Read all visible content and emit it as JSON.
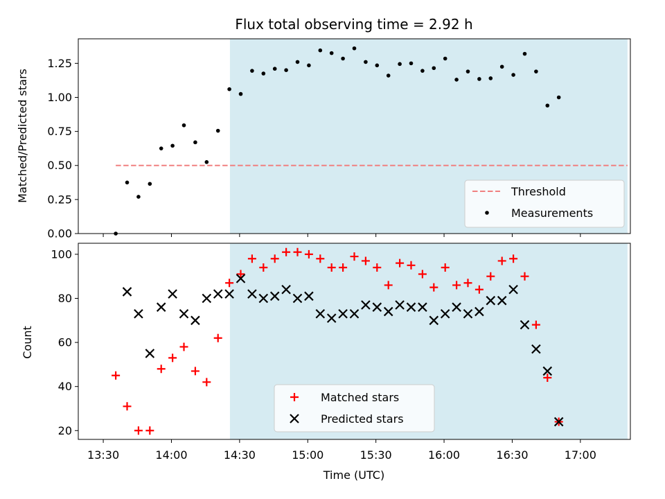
{
  "chart_data": [
    {
      "type": "scatter",
      "title": "Flux total observing time = 2.92 h",
      "ylabel": "Matched/Predicted stars",
      "ylim": [
        0,
        1.43
      ],
      "yticks": [
        0.0,
        0.25,
        0.5,
        0.75,
        1.0,
        1.25
      ],
      "ytick_labels": [
        "0.00",
        "0.25",
        "0.50",
        "0.75",
        "1.00",
        "1.25"
      ],
      "shaded_span_minutes": [
        55.75,
        230.75
      ],
      "threshold": {
        "name": "Threshold",
        "value": 0.5,
        "x_range_minutes": [
          5.5,
          230.75
        ],
        "color": "#f08080"
      },
      "legend_position": "lower right",
      "series": [
        {
          "name": "Measurements",
          "color": "#000000",
          "points": [
            [
              5.5,
              0.0
            ],
            [
              10.5,
              0.375
            ],
            [
              15.5,
              0.27
            ],
            [
              20.5,
              0.365
            ],
            [
              25.5,
              0.625
            ],
            [
              30.5,
              0.645
            ],
            [
              35.5,
              0.795
            ],
            [
              40.5,
              0.67
            ],
            [
              45.5,
              0.525
            ],
            [
              50.5,
              0.755
            ],
            [
              55.5,
              1.06
            ],
            [
              60.5,
              1.025
            ],
            [
              65.5,
              1.195
            ],
            [
              70.5,
              1.175
            ],
            [
              75.5,
              1.21
            ],
            [
              80.5,
              1.2
            ],
            [
              85.5,
              1.26
            ],
            [
              90.5,
              1.235
            ],
            [
              95.5,
              1.345
            ],
            [
              100.5,
              1.325
            ],
            [
              105.5,
              1.285
            ],
            [
              110.5,
              1.36
            ],
            [
              115.5,
              1.26
            ],
            [
              120.5,
              1.235
            ],
            [
              125.5,
              1.16
            ],
            [
              130.5,
              1.245
            ],
            [
              135.5,
              1.25
            ],
            [
              140.5,
              1.195
            ],
            [
              145.5,
              1.215
            ],
            [
              150.5,
              1.285
            ],
            [
              155.5,
              1.13
            ],
            [
              160.5,
              1.19
            ],
            [
              165.5,
              1.135
            ],
            [
              170.5,
              1.14
            ],
            [
              175.5,
              1.225
            ],
            [
              180.5,
              1.165
            ],
            [
              185.5,
              1.32
            ],
            [
              190.5,
              1.19
            ],
            [
              195.5,
              0.94
            ],
            [
              200.5,
              1.0
            ]
          ]
        }
      ]
    },
    {
      "type": "scatter",
      "xlabel": "Time (UTC)",
      "ylabel": "Count",
      "ylim": [
        16,
        105
      ],
      "yticks": [
        20,
        40,
        60,
        80,
        100
      ],
      "x_range_minutes": [
        -11,
        232
      ],
      "x_zero_time": "13:30",
      "xticks_minutes": [
        0,
        30,
        60,
        90,
        120,
        150,
        180,
        210
      ],
      "xtick_labels": [
        "13:30",
        "14:00",
        "14:30",
        "15:00",
        "15:30",
        "16:00",
        "16:30",
        "17:00"
      ],
      "shaded_span_minutes": [
        55.75,
        230.75
      ],
      "legend_position": "lower center",
      "series": [
        {
          "name": "Matched stars",
          "color": "#ff0000",
          "marker": "plus",
          "points": [
            [
              5.5,
              45
            ],
            [
              10.5,
              31
            ],
            [
              15.5,
              20
            ],
            [
              20.5,
              20
            ],
            [
              25.5,
              48
            ],
            [
              30.5,
              53
            ],
            [
              35.5,
              58
            ],
            [
              40.5,
              47
            ],
            [
              45.5,
              42
            ],
            [
              50.5,
              62
            ],
            [
              55.5,
              87
            ],
            [
              60.5,
              91
            ],
            [
              65.5,
              98
            ],
            [
              70.5,
              94
            ],
            [
              75.5,
              98
            ],
            [
              80.5,
              101
            ],
            [
              85.5,
              101
            ],
            [
              90.5,
              100
            ],
            [
              95.5,
              98
            ],
            [
              100.5,
              94
            ],
            [
              105.5,
              94
            ],
            [
              110.5,
              99
            ],
            [
              115.5,
              97
            ],
            [
              120.5,
              94
            ],
            [
              125.5,
              86
            ],
            [
              130.5,
              96
            ],
            [
              135.5,
              95
            ],
            [
              140.5,
              91
            ],
            [
              145.5,
              85
            ],
            [
              150.5,
              94
            ],
            [
              155.5,
              86
            ],
            [
              160.5,
              87
            ],
            [
              165.5,
              84
            ],
            [
              170.5,
              90
            ],
            [
              175.5,
              97
            ],
            [
              180.5,
              98
            ],
            [
              185.5,
              90
            ],
            [
              190.5,
              68
            ],
            [
              195.5,
              44
            ],
            [
              200.5,
              24
            ]
          ]
        },
        {
          "name": "Predicted stars",
          "color": "#000000",
          "marker": "x",
          "points": [
            [
              10.5,
              83
            ],
            [
              15.5,
              73
            ],
            [
              20.5,
              55
            ],
            [
              25.5,
              76
            ],
            [
              30.5,
              82
            ],
            [
              35.5,
              73
            ],
            [
              40.5,
              70
            ],
            [
              45.5,
              80
            ],
            [
              50.5,
              82
            ],
            [
              55.5,
              82
            ],
            [
              60.5,
              89
            ],
            [
              65.5,
              82
            ],
            [
              70.5,
              80
            ],
            [
              75.5,
              81
            ],
            [
              80.5,
              84
            ],
            [
              85.5,
              80
            ],
            [
              90.5,
              81
            ],
            [
              95.5,
              73
            ],
            [
              100.5,
              71
            ],
            [
              105.5,
              73
            ],
            [
              110.5,
              73
            ],
            [
              115.5,
              77
            ],
            [
              120.5,
              76
            ],
            [
              125.5,
              74
            ],
            [
              130.5,
              77
            ],
            [
              135.5,
              76
            ],
            [
              140.5,
              76
            ],
            [
              145.5,
              70
            ],
            [
              150.5,
              73
            ],
            [
              155.5,
              76
            ],
            [
              160.5,
              73
            ],
            [
              165.5,
              74
            ],
            [
              170.5,
              79
            ],
            [
              175.5,
              79
            ],
            [
              180.5,
              84
            ],
            [
              185.5,
              68
            ],
            [
              190.5,
              57
            ],
            [
              195.5,
              47
            ],
            [
              200.5,
              24
            ]
          ]
        }
      ]
    }
  ],
  "colors": {
    "shade": "#add8e6",
    "shade_opacity": 0.5
  }
}
